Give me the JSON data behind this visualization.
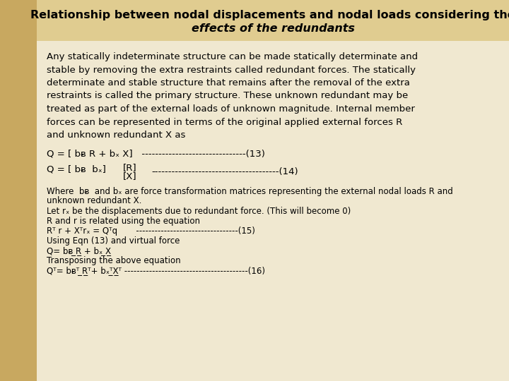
{
  "title_line1": "Relationship between nodal displacements and nodal loads considering the",
  "title_line2": "effects of the redundants",
  "bg_color": "#e8d5a0",
  "left_strip_color": "#c8a860",
  "content_bg": "#f0e8d0",
  "title_bg": "#e0cc90",
  "title_fontsize": 11.5,
  "body_fontsize": 9.5,
  "small_fontsize": 8.5,
  "para1_lines": [
    "Any statically indeterminate structure can be made statically determinate and",
    "stable by removing the extra restraints called redundant forces. The statically",
    "determinate and stable structure that remains after the removal of the extra",
    "restraints is called the primary structure. These unknown redundant may be",
    "treated as part of the external loads of unknown magnitude. Internal member",
    "forces can be represented in terms of the original applied external forces R",
    "and unknown redundant X as"
  ]
}
